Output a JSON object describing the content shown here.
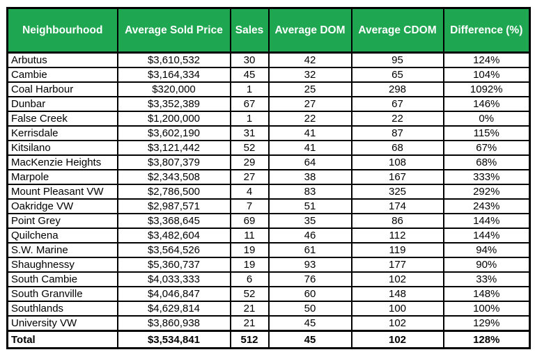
{
  "colors": {
    "header_bg": "#1fa651",
    "header_text": "#ffffff",
    "border": "#000000",
    "body_bg": "#ffffff",
    "body_text": "#000000"
  },
  "table": {
    "columns": [
      "Neighbourhood",
      "Average Sold Price",
      "Sales",
      "Average DOM",
      "Average CDOM",
      "Difference (%)"
    ],
    "rows": [
      [
        "Arbutus",
        "$3,610,532",
        "30",
        "42",
        "95",
        "124%"
      ],
      [
        "Cambie",
        "$3,164,334",
        "45",
        "32",
        "65",
        "104%"
      ],
      [
        "Coal Harbour",
        "$320,000",
        "1",
        "25",
        "298",
        "1092%"
      ],
      [
        "Dunbar",
        "$3,352,389",
        "67",
        "27",
        "67",
        "146%"
      ],
      [
        "False Creek",
        "$1,200,000",
        "1",
        "22",
        "22",
        "0%"
      ],
      [
        "Kerrisdale",
        "$3,602,190",
        "31",
        "41",
        "87",
        "115%"
      ],
      [
        "Kitsilano",
        "$3,121,442",
        "52",
        "41",
        "68",
        "67%"
      ],
      [
        "MacKenzie Heights",
        "$3,807,379",
        "29",
        "64",
        "108",
        "68%"
      ],
      [
        "Marpole",
        "$2,343,508",
        "27",
        "38",
        "167",
        "333%"
      ],
      [
        "Mount Pleasant VW",
        "$2,786,500",
        "4",
        "83",
        "325",
        "292%"
      ],
      [
        "Oakridge VW",
        "$2,987,571",
        "7",
        "51",
        "174",
        "243%"
      ],
      [
        "Point Grey",
        "$3,368,645",
        "69",
        "35",
        "86",
        "144%"
      ],
      [
        "Quilchena",
        "$3,482,604",
        "11",
        "46",
        "112",
        "144%"
      ],
      [
        "S.W. Marine",
        "$3,564,526",
        "19",
        "61",
        "119",
        "94%"
      ],
      [
        "Shaughnessy",
        "$5,360,737",
        "19",
        "93",
        "177",
        "90%"
      ],
      [
        "South Cambie",
        "$4,033,333",
        "6",
        "76",
        "102",
        "33%"
      ],
      [
        "South Granville",
        "$4,046,847",
        "52",
        "60",
        "148",
        "148%"
      ],
      [
        "Southlands",
        "$4,629,814",
        "21",
        "50",
        "100",
        "100%"
      ],
      [
        "University VW",
        "$3,860,938",
        "21",
        "45",
        "102",
        "129%"
      ]
    ],
    "total_row": [
      "Total",
      "$3,534,841",
      "512",
      "45",
      "102",
      "128%"
    ]
  },
  "chart_data": {
    "type": "table",
    "title": "",
    "columns": [
      "Neighbourhood",
      "Average Sold Price",
      "Sales",
      "Average DOM",
      "Average CDOM",
      "Difference (%)"
    ],
    "rows": [
      {
        "neighbourhood": "Arbutus",
        "average_sold_price": 3610532,
        "sales": 30,
        "average_dom": 42,
        "average_cdom": 95,
        "difference_pct": 124
      },
      {
        "neighbourhood": "Cambie",
        "average_sold_price": 3164334,
        "sales": 45,
        "average_dom": 32,
        "average_cdom": 65,
        "difference_pct": 104
      },
      {
        "neighbourhood": "Coal Harbour",
        "average_sold_price": 320000,
        "sales": 1,
        "average_dom": 25,
        "average_cdom": 298,
        "difference_pct": 1092
      },
      {
        "neighbourhood": "Dunbar",
        "average_sold_price": 3352389,
        "sales": 67,
        "average_dom": 27,
        "average_cdom": 67,
        "difference_pct": 146
      },
      {
        "neighbourhood": "False Creek",
        "average_sold_price": 1200000,
        "sales": 1,
        "average_dom": 22,
        "average_cdom": 22,
        "difference_pct": 0
      },
      {
        "neighbourhood": "Kerrisdale",
        "average_sold_price": 3602190,
        "sales": 31,
        "average_dom": 41,
        "average_cdom": 87,
        "difference_pct": 115
      },
      {
        "neighbourhood": "Kitsilano",
        "average_sold_price": 3121442,
        "sales": 52,
        "average_dom": 41,
        "average_cdom": 68,
        "difference_pct": 67
      },
      {
        "neighbourhood": "MacKenzie Heights",
        "average_sold_price": 3807379,
        "sales": 29,
        "average_dom": 64,
        "average_cdom": 108,
        "difference_pct": 68
      },
      {
        "neighbourhood": "Marpole",
        "average_sold_price": 2343508,
        "sales": 27,
        "average_dom": 38,
        "average_cdom": 167,
        "difference_pct": 333
      },
      {
        "neighbourhood": "Mount Pleasant VW",
        "average_sold_price": 2786500,
        "sales": 4,
        "average_dom": 83,
        "average_cdom": 325,
        "difference_pct": 292
      },
      {
        "neighbourhood": "Oakridge VW",
        "average_sold_price": 2987571,
        "sales": 7,
        "average_dom": 51,
        "average_cdom": 174,
        "difference_pct": 243
      },
      {
        "neighbourhood": "Point Grey",
        "average_sold_price": 3368645,
        "sales": 69,
        "average_dom": 35,
        "average_cdom": 86,
        "difference_pct": 144
      },
      {
        "neighbourhood": "Quilchena",
        "average_sold_price": 3482604,
        "sales": 11,
        "average_dom": 46,
        "average_cdom": 112,
        "difference_pct": 144
      },
      {
        "neighbourhood": "S.W. Marine",
        "average_sold_price": 3564526,
        "sales": 19,
        "average_dom": 61,
        "average_cdom": 119,
        "difference_pct": 94
      },
      {
        "neighbourhood": "Shaughnessy",
        "average_sold_price": 5360737,
        "sales": 19,
        "average_dom": 93,
        "average_cdom": 177,
        "difference_pct": 90
      },
      {
        "neighbourhood": "South Cambie",
        "average_sold_price": 4033333,
        "sales": 6,
        "average_dom": 76,
        "average_cdom": 102,
        "difference_pct": 33
      },
      {
        "neighbourhood": "South Granville",
        "average_sold_price": 4046847,
        "sales": 52,
        "average_dom": 60,
        "average_cdom": 148,
        "difference_pct": 148
      },
      {
        "neighbourhood": "Southlands",
        "average_sold_price": 4629814,
        "sales": 21,
        "average_dom": 50,
        "average_cdom": 100,
        "difference_pct": 100
      },
      {
        "neighbourhood": "University VW",
        "average_sold_price": 3860938,
        "sales": 21,
        "average_dom": 45,
        "average_cdom": 102,
        "difference_pct": 129
      }
    ],
    "total": {
      "neighbourhood": "Total",
      "average_sold_price": 3534841,
      "sales": 512,
      "average_dom": 45,
      "average_cdom": 102,
      "difference_pct": 128
    }
  }
}
